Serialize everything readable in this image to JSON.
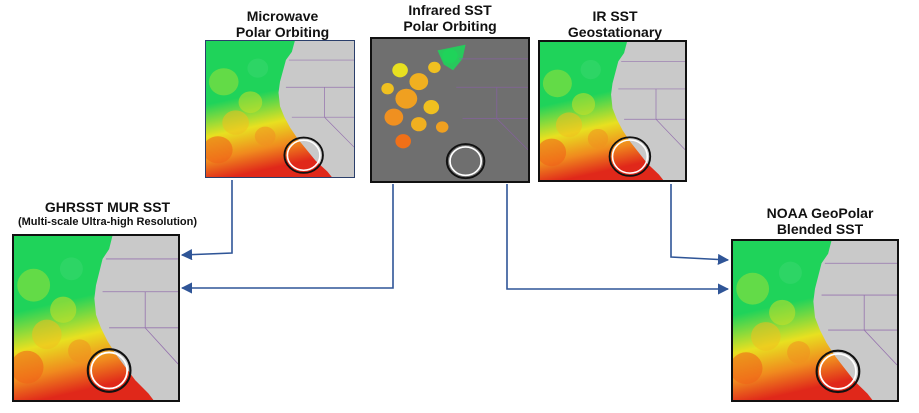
{
  "diagram": {
    "sources": [
      {
        "id": "microwave",
        "line1": "Microwave",
        "line2": "Polar Orbiting"
      },
      {
        "id": "infrared",
        "line1": "Infrared SST",
        "line2": "Polar Orbiting"
      },
      {
        "id": "ir-geo",
        "line1": "IR SST",
        "line2": "Geostationary"
      }
    ],
    "products": [
      {
        "id": "mur",
        "line1": "GHRSST MUR SST",
        "line2": "(Multi-scale Ultra-high Resolution)"
      },
      {
        "id": "geopolar",
        "line1": "NOAA GeoPolar",
        "line2": "Blended SST"
      }
    ],
    "colors": {
      "arrow": "#2f5597",
      "land": "#c9c9c9",
      "land_dark": "#6f6f6f",
      "ocean_cold": "#1fd35a",
      "ocean_mid": "#e8e020",
      "ocean_warm": "#e0281a",
      "border": "#8a5fa8"
    }
  }
}
